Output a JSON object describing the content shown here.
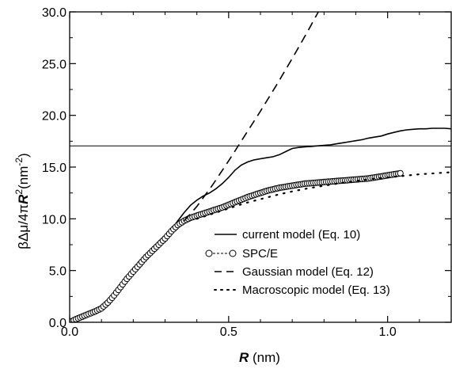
{
  "chart_data": {
    "type": "line",
    "title": "",
    "xlabel_main": "R",
    "xlabel_unit": " (nm)",
    "ylabel_parts": {
      "prefix": "βΔμ/4π",
      "var": "R",
      "sup": "2",
      "unit_open": "(nm",
      "unit_sup": "-2",
      "unit_close": ")"
    },
    "xlim": [
      0.0,
      1.2
    ],
    "ylim": [
      0.0,
      30.0
    ],
    "x_ticks": [
      0.0,
      0.5,
      1.0
    ],
    "x_tick_labels": [
      "0.0",
      "0.5",
      "1.0"
    ],
    "y_ticks": [
      0.0,
      5.0,
      10.0,
      15.0,
      20.0,
      25.0,
      30.0
    ],
    "y_tick_labels": [
      "0.0",
      "5.0",
      "10.0",
      "15.0",
      "20.0",
      "25.0",
      "30.0"
    ],
    "grid": false,
    "legend_position": "lower-right",
    "hline": 17.05,
    "series": [
      {
        "name": "current model (Eq. 10)",
        "style": "solid",
        "x": [
          0.0,
          0.02,
          0.04,
          0.06,
          0.08,
          0.1,
          0.12,
          0.14,
          0.16,
          0.18,
          0.2,
          0.22,
          0.24,
          0.26,
          0.28,
          0.3,
          0.32,
          0.34,
          0.36,
          0.38,
          0.4,
          0.42,
          0.44,
          0.46,
          0.48,
          0.5,
          0.52,
          0.54,
          0.56,
          0.58,
          0.6,
          0.62,
          0.64,
          0.66,
          0.68,
          0.7,
          0.72,
          0.74,
          0.76,
          0.78,
          0.8,
          0.82,
          0.84,
          0.86,
          0.88,
          0.9,
          0.92,
          0.94,
          0.96,
          0.98,
          1.0,
          1.02,
          1.04,
          1.06,
          1.08,
          1.1,
          1.12,
          1.14,
          1.16,
          1.18,
          1.2
        ],
        "y": [
          0.0,
          0.3,
          0.55,
          0.8,
          1.05,
          1.35,
          1.9,
          2.6,
          3.4,
          4.2,
          4.9,
          5.6,
          6.3,
          6.9,
          7.5,
          8.1,
          8.9,
          9.8,
          10.6,
          11.3,
          11.8,
          12.2,
          12.5,
          12.9,
          13.4,
          14.0,
          14.7,
          15.2,
          15.5,
          15.7,
          15.8,
          15.9,
          16.0,
          16.2,
          16.5,
          16.8,
          16.9,
          16.95,
          17.0,
          17.05,
          17.1,
          17.15,
          17.25,
          17.35,
          17.45,
          17.55,
          17.65,
          17.8,
          17.9,
          18.0,
          18.2,
          18.35,
          18.5,
          18.6,
          18.65,
          18.7,
          18.7,
          18.75,
          18.75,
          18.75,
          18.7
        ]
      },
      {
        "name": "SPC/E",
        "style": "circles-dashed",
        "x": [
          0.0,
          0.02,
          0.04,
          0.06,
          0.08,
          0.1,
          0.12,
          0.14,
          0.16,
          0.18,
          0.2,
          0.22,
          0.24,
          0.26,
          0.28,
          0.3,
          0.32,
          0.34,
          0.36,
          0.38,
          0.4,
          0.42,
          0.44,
          0.46,
          0.48,
          0.5,
          0.52,
          0.54,
          0.56,
          0.58,
          0.6,
          0.62,
          0.64,
          0.66,
          0.68,
          0.7,
          0.72,
          0.74,
          0.76,
          0.78,
          0.8,
          0.82,
          0.84,
          0.86,
          0.88,
          0.9,
          0.92,
          0.94,
          0.96,
          0.98,
          1.0,
          1.02,
          1.04
        ],
        "y": [
          0.0,
          0.3,
          0.55,
          0.8,
          1.05,
          1.35,
          1.9,
          2.6,
          3.4,
          4.2,
          4.9,
          5.6,
          6.3,
          6.9,
          7.5,
          8.1,
          8.8,
          9.4,
          9.8,
          10.1,
          10.3,
          10.5,
          10.7,
          10.9,
          11.1,
          11.35,
          11.6,
          11.85,
          12.1,
          12.3,
          12.5,
          12.7,
          12.85,
          13.0,
          13.1,
          13.2,
          13.3,
          13.4,
          13.45,
          13.5,
          13.55,
          13.6,
          13.65,
          13.7,
          13.75,
          13.8,
          13.85,
          13.9,
          14.0,
          14.1,
          14.2,
          14.3,
          14.4
        ]
      },
      {
        "name": "Gaussian model (Eq. 12)",
        "style": "dashed",
        "x": [
          0.36,
          0.4,
          0.45,
          0.5,
          0.55,
          0.6,
          0.65,
          0.7,
          0.75,
          0.8
        ],
        "y": [
          9.8,
          11.2,
          13.3,
          15.6,
          18.0,
          20.4,
          22.9,
          25.5,
          28.2,
          31.0
        ]
      },
      {
        "name": "Macroscopic model (Eq. 13)",
        "style": "dotted",
        "x": [
          0.4,
          0.45,
          0.5,
          0.55,
          0.6,
          0.65,
          0.7,
          0.75,
          0.8,
          0.85,
          0.9,
          0.95,
          1.0,
          1.05,
          1.1,
          1.15,
          1.2
        ],
        "y": [
          10.0,
          10.5,
          11.0,
          11.5,
          11.9,
          12.3,
          12.65,
          12.95,
          13.2,
          13.45,
          13.65,
          13.85,
          14.0,
          14.15,
          14.3,
          14.4,
          14.5
        ]
      }
    ]
  }
}
